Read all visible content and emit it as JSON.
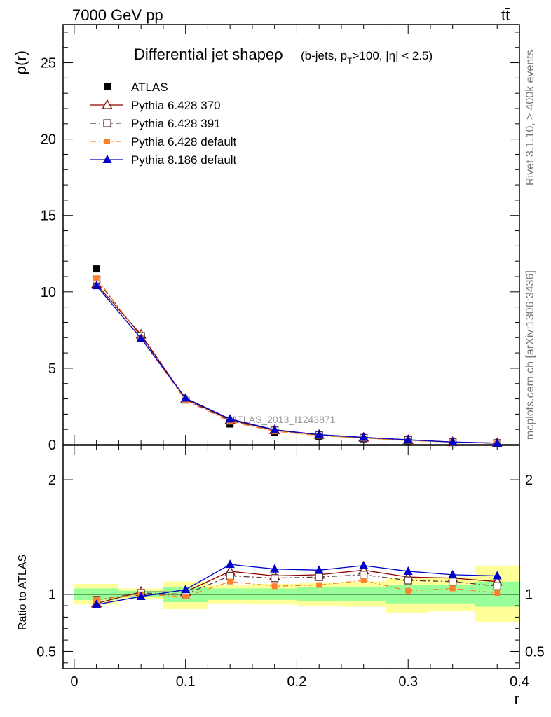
{
  "header": {
    "left": "7000 GeV pp",
    "right": "tt̄"
  },
  "side_text": {
    "rivet": "Rivet 3.1.10, ≥ 400k events",
    "mcplots": "mcplots.cern.ch [arXiv:1306:3436]"
  },
  "chart_data": [
    {
      "type": "line",
      "title": "Differential jet shapeρ",
      "subtitle_parts": {
        "a": "(b-jets, p",
        "sub": "T",
        "b": ">100, |η| < 2.5)"
      },
      "ylabel": "ρ(r)",
      "watermark": "ATLAS_2013_I1243871",
      "xlim": [
        -0.01,
        0.4
      ],
      "ylim": [
        0,
        27.5
      ],
      "yticks": [
        0,
        5,
        10,
        15,
        20,
        25
      ],
      "ytick_labels": [
        "0",
        "5",
        "10",
        "15",
        "20",
        "25"
      ],
      "x": [
        0.02,
        0.06,
        0.1,
        0.14,
        0.18,
        0.22,
        0.26,
        0.3,
        0.34,
        0.38
      ],
      "legend_position": "top-left",
      "series": [
        {
          "name": "ATLAS",
          "color": "#000000",
          "marker": "square-filled",
          "line": "none",
          "values": [
            11.5,
            7.0,
            2.95,
            1.35,
            0.82,
            0.55,
            0.38,
            0.26,
            0.15,
            0.09
          ]
        },
        {
          "name": "Pythia 6.428 370",
          "color": "#8b0000",
          "marker": "triangle-open",
          "line": "solid",
          "values": [
            10.5,
            7.2,
            3.0,
            1.62,
            0.95,
            0.64,
            0.46,
            0.31,
            0.17,
            0.1
          ]
        },
        {
          "name": "Pythia 6.428 391",
          "color": "#5a3a3a",
          "marker": "square-open",
          "line": "dashdot",
          "values": [
            10.8,
            7.1,
            2.95,
            1.58,
            0.93,
            0.62,
            0.44,
            0.3,
            0.16,
            0.1
          ]
        },
        {
          "name": "Pythia 6.428 default",
          "color": "#ff7f2a",
          "marker": "square-filled-small",
          "line": "dashdot",
          "values": [
            10.9,
            7.0,
            2.9,
            1.5,
            0.88,
            0.59,
            0.42,
            0.27,
            0.16,
            0.09
          ]
        },
        {
          "name": "Pythia 8.186 default",
          "color": "#0000cc",
          "marker": "triangle-filled",
          "line": "solid",
          "values": [
            10.4,
            6.95,
            3.05,
            1.68,
            0.98,
            0.66,
            0.48,
            0.32,
            0.17,
            0.1
          ]
        }
      ]
    },
    {
      "type": "line",
      "ylabel": "Ratio to ATLAS",
      "xlabel": "r",
      "xlim": [
        -0.01,
        0.4
      ],
      "ylim": [
        0.35,
        2.3
      ],
      "yticks": [
        0.5,
        1,
        2
      ],
      "ytick_labels": [
        "0.5",
        "1",
        "2"
      ],
      "xticks": [
        0,
        0.1,
        0.2,
        0.3,
        0.4
      ],
      "xtick_labels": [
        "0",
        "0.1",
        "0.2",
        "0.3",
        "0.4"
      ],
      "x": [
        0.02,
        0.06,
        0.1,
        0.14,
        0.18,
        0.22,
        0.26,
        0.3,
        0.34,
        0.38
      ],
      "bands": {
        "bin_edges": [
          0.0,
          0.04,
          0.08,
          0.12,
          0.16,
          0.2,
          0.24,
          0.28,
          0.32,
          0.36,
          0.4
        ],
        "outer_color": "#ffff99",
        "inner_color": "#99ff99",
        "outer_low": [
          0.91,
          0.96,
          0.87,
          0.92,
          0.91,
          0.9,
          0.89,
          0.84,
          0.85,
          0.76
        ],
        "outer_high": [
          1.09,
          1.05,
          1.11,
          1.08,
          1.09,
          1.1,
          1.11,
          1.14,
          1.15,
          1.25
        ],
        "inner_low": [
          0.95,
          0.98,
          0.93,
          0.95,
          0.95,
          0.94,
          0.94,
          0.92,
          0.92,
          0.89
        ],
        "inner_high": [
          1.05,
          1.03,
          1.06,
          1.05,
          1.05,
          1.06,
          1.06,
          1.08,
          1.08,
          1.11
        ]
      },
      "series": [
        {
          "name": "Pythia 6.428 370",
          "color": "#8b0000",
          "marker": "triangle-open",
          "line": "solid",
          "values": [
            0.92,
            1.02,
            1.02,
            1.2,
            1.16,
            1.17,
            1.21,
            1.15,
            1.14,
            1.11
          ]
        },
        {
          "name": "Pythia 6.428 391",
          "color": "#5a3a3a",
          "marker": "square-open",
          "line": "dashdot",
          "values": [
            0.95,
            1.01,
            1.0,
            1.16,
            1.14,
            1.15,
            1.17,
            1.12,
            1.11,
            1.07
          ]
        },
        {
          "name": "Pythia 6.428 default",
          "color": "#ff7f2a",
          "marker": "square-filled-small",
          "line": "dashdot",
          "values": [
            0.95,
            1.0,
            0.98,
            1.11,
            1.07,
            1.08,
            1.12,
            1.03,
            1.05,
            1.01
          ]
        },
        {
          "name": "Pythia 8.186 default",
          "color": "#0000cc",
          "marker": "triangle-filled",
          "line": "solid",
          "values": [
            0.91,
            0.98,
            1.04,
            1.26,
            1.22,
            1.21,
            1.25,
            1.2,
            1.17,
            1.16
          ]
        }
      ]
    }
  ]
}
